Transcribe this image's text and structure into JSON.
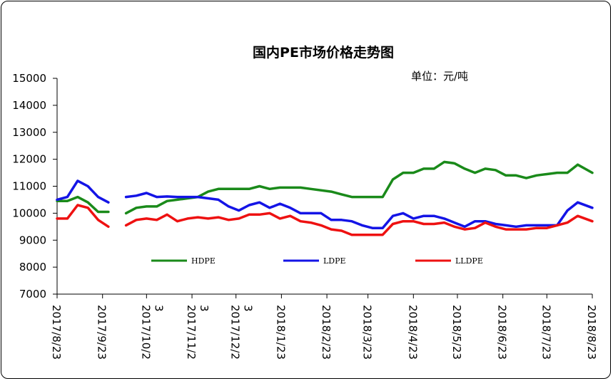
{
  "chart_data": {
    "type": "line",
    "title": "国内PE市场价格走势图",
    "unit_label": "单位：元/吨",
    "ylim": [
      7000,
      15000
    ],
    "y_ticks": [
      7000,
      8000,
      9000,
      10000,
      11000,
      12000,
      13000,
      14000,
      15000
    ],
    "x_range": [
      "2017/8/23",
      "2018/8/23"
    ],
    "x_tick_labels": [
      {
        "date": "2017/8/23",
        "lines": [
          "2017/8/23"
        ]
      },
      {
        "date": "2017/9/23",
        "lines": [
          "2017/9/23"
        ]
      },
      {
        "date": "2017/10/23",
        "lines": [
          "2017/10/2",
          "3"
        ]
      },
      {
        "date": "2017/11/23",
        "lines": [
          "2017/11/2",
          "3"
        ]
      },
      {
        "date": "2017/12/23",
        "lines": [
          "2017/12/2",
          "3"
        ]
      },
      {
        "date": "2018/1/23",
        "lines": [
          "2018/1/23"
        ]
      },
      {
        "date": "2018/2/23",
        "lines": [
          "2018/2/23"
        ]
      },
      {
        "date": "2018/3/23",
        "lines": [
          "2018/3/23"
        ]
      },
      {
        "date": "2018/4/23",
        "lines": [
          "2018/4/23"
        ]
      },
      {
        "date": "2018/5/23",
        "lines": [
          "2018/5/23"
        ]
      },
      {
        "date": "2018/6/23",
        "lines": [
          "2018/6/23"
        ]
      },
      {
        "date": "2018/7/23",
        "lines": [
          "2018/7/23"
        ]
      },
      {
        "date": "2018/8/23",
        "lines": [
          "2018/8/23"
        ]
      }
    ],
    "grid": false,
    "legend_position": "bottom-inside",
    "series": [
      {
        "name": "HDPE",
        "color": "#1a8a1a",
        "segments": [
          [
            [
              "2017/8/23",
              10450
            ],
            [
              "2017/8/30",
              10450
            ],
            [
              "2017/9/6",
              10600
            ],
            [
              "2017/9/13",
              10400
            ],
            [
              "2017/9/20",
              10050
            ],
            [
              "2017/9/27",
              10050
            ]
          ],
          [
            [
              "2017/10/9",
              10000
            ],
            [
              "2017/10/16",
              10200
            ],
            [
              "2017/10/23",
              10250
            ],
            [
              "2017/10/30",
              10250
            ],
            [
              "2017/11/6",
              10450
            ],
            [
              "2017/11/13",
              10500
            ],
            [
              "2017/11/20",
              10550
            ],
            [
              "2017/11/27",
              10600
            ],
            [
              "2017/12/4",
              10800
            ],
            [
              "2017/12/11",
              10900
            ],
            [
              "2017/12/18",
              10900
            ],
            [
              "2017/12/25",
              10900
            ],
            [
              "2018/1/1",
              10900
            ],
            [
              "2018/1/8",
              11000
            ],
            [
              "2018/1/15",
              10900
            ],
            [
              "2018/1/22",
              10950
            ],
            [
              "2018/1/29",
              10950
            ],
            [
              "2018/2/5",
              10950
            ],
            [
              "2018/2/12",
              10900
            ],
            [
              "2018/2/26",
              10800
            ],
            [
              "2018/3/5",
              10700
            ],
            [
              "2018/3/12",
              10600
            ],
            [
              "2018/3/19",
              10600
            ],
            [
              "2018/3/26",
              10600
            ],
            [
              "2018/4/2",
              10600
            ],
            [
              "2018/4/9",
              11250
            ],
            [
              "2018/4/16",
              11500
            ],
            [
              "2018/4/23",
              11500
            ],
            [
              "2018/4/30",
              11650
            ],
            [
              "2018/5/7",
              11650
            ],
            [
              "2018/5/14",
              11900
            ],
            [
              "2018/5/21",
              11850
            ],
            [
              "2018/5/28",
              11650
            ],
            [
              "2018/6/4",
              11500
            ],
            [
              "2018/6/11",
              11650
            ],
            [
              "2018/6/18",
              11600
            ],
            [
              "2018/6/25",
              11400
            ],
            [
              "2018/7/2",
              11400
            ],
            [
              "2018/7/9",
              11300
            ],
            [
              "2018/7/16",
              11400
            ],
            [
              "2018/7/23",
              11450
            ],
            [
              "2018/7/30",
              11500
            ],
            [
              "2018/8/6",
              11500
            ],
            [
              "2018/8/13",
              11800
            ],
            [
              "2018/8/23",
              11500
            ]
          ]
        ]
      },
      {
        "name": "LDPE",
        "color": "#1414e6",
        "segments": [
          [
            [
              "2017/8/23",
              10500
            ],
            [
              "2017/8/30",
              10600
            ],
            [
              "2017/9/6",
              11200
            ],
            [
              "2017/9/13",
              11000
            ],
            [
              "2017/9/20",
              10600
            ],
            [
              "2017/9/27",
              10400
            ]
          ],
          [
            [
              "2017/10/9",
              10600
            ],
            [
              "2017/10/16",
              10650
            ],
            [
              "2017/10/23",
              10750
            ],
            [
              "2017/10/30",
              10600
            ],
            [
              "2017/11/6",
              10620
            ],
            [
              "2017/11/13",
              10600
            ],
            [
              "2017/11/20",
              10600
            ],
            [
              "2017/11/27",
              10600
            ],
            [
              "2017/12/4",
              10550
            ],
            [
              "2017/12/11",
              10500
            ],
            [
              "2017/12/18",
              10250
            ],
            [
              "2017/12/25",
              10100
            ],
            [
              "2018/1/1",
              10300
            ],
            [
              "2018/1/8",
              10400
            ],
            [
              "2018/1/15",
              10200
            ],
            [
              "2018/1/22",
              10350
            ],
            [
              "2018/1/29",
              10200
            ],
            [
              "2018/2/5",
              10000
            ],
            [
              "2018/2/12",
              10000
            ],
            [
              "2018/2/19",
              10000
            ],
            [
              "2018/2/26",
              9750
            ],
            [
              "2018/3/5",
              9750
            ],
            [
              "2018/3/12",
              9700
            ],
            [
              "2018/3/19",
              9550
            ],
            [
              "2018/3/26",
              9450
            ],
            [
              "2018/4/2",
              9450
            ],
            [
              "2018/4/9",
              9900
            ],
            [
              "2018/4/16",
              10000
            ],
            [
              "2018/4/23",
              9800
            ],
            [
              "2018/4/30",
              9900
            ],
            [
              "2018/5/7",
              9900
            ],
            [
              "2018/5/14",
              9800
            ],
            [
              "2018/5/21",
              9650
            ],
            [
              "2018/5/28",
              9500
            ],
            [
              "2018/6/4",
              9700
            ],
            [
              "2018/6/11",
              9700
            ],
            [
              "2018/6/18",
              9600
            ],
            [
              "2018/6/25",
              9550
            ],
            [
              "2018/7/2",
              9500
            ],
            [
              "2018/7/9",
              9550
            ],
            [
              "2018/7/16",
              9550
            ],
            [
              "2018/7/23",
              9550
            ],
            [
              "2018/7/30",
              9550
            ],
            [
              "2018/8/6",
              10100
            ],
            [
              "2018/8/13",
              10400
            ],
            [
              "2018/8/23",
              10200
            ]
          ]
        ]
      },
      {
        "name": "LLDPE",
        "color": "#ee1111",
        "segments": [
          [
            [
              "2017/8/23",
              9800
            ],
            [
              "2017/8/30",
              9800
            ],
            [
              "2017/9/6",
              10300
            ],
            [
              "2017/9/13",
              10200
            ],
            [
              "2017/9/20",
              9750
            ],
            [
              "2017/9/27",
              9500
            ]
          ],
          [
            [
              "2017/10/9",
              9550
            ],
            [
              "2017/10/16",
              9750
            ],
            [
              "2017/10/23",
              9800
            ],
            [
              "2017/10/30",
              9750
            ],
            [
              "2017/11/6",
              9950
            ],
            [
              "2017/11/13",
              9700
            ],
            [
              "2017/11/20",
              9800
            ],
            [
              "2017/11/27",
              9850
            ],
            [
              "2017/12/4",
              9800
            ],
            [
              "2017/12/11",
              9850
            ],
            [
              "2017/12/18",
              9750
            ],
            [
              "2017/12/25",
              9800
            ],
            [
              "2018/1/1",
              9950
            ],
            [
              "2018/1/8",
              9950
            ],
            [
              "2018/1/15",
              10000
            ],
            [
              "2018/1/22",
              9800
            ],
            [
              "2018/1/29",
              9900
            ],
            [
              "2018/2/5",
              9700
            ],
            [
              "2018/2/12",
              9650
            ],
            [
              "2018/2/19",
              9550
            ],
            [
              "2018/2/26",
              9400
            ],
            [
              "2018/3/5",
              9350
            ],
            [
              "2018/3/12",
              9200
            ],
            [
              "2018/3/19",
              9200
            ],
            [
              "2018/3/26",
              9200
            ],
            [
              "2018/4/2",
              9200
            ],
            [
              "2018/4/9",
              9600
            ],
            [
              "2018/4/16",
              9700
            ],
            [
              "2018/4/23",
              9700
            ],
            [
              "2018/4/30",
              9600
            ],
            [
              "2018/5/7",
              9600
            ],
            [
              "2018/5/14",
              9650
            ],
            [
              "2018/5/21",
              9500
            ],
            [
              "2018/5/28",
              9400
            ],
            [
              "2018/6/4",
              9450
            ],
            [
              "2018/6/11",
              9650
            ],
            [
              "2018/6/18",
              9500
            ],
            [
              "2018/6/25",
              9400
            ],
            [
              "2018/7/2",
              9400
            ],
            [
              "2018/7/9",
              9400
            ],
            [
              "2018/7/16",
              9450
            ],
            [
              "2018/7/23",
              9450
            ],
            [
              "2018/7/30",
              9550
            ],
            [
              "2018/8/6",
              9650
            ],
            [
              "2018/8/13",
              9900
            ],
            [
              "2018/8/23",
              9700
            ]
          ]
        ]
      }
    ]
  }
}
